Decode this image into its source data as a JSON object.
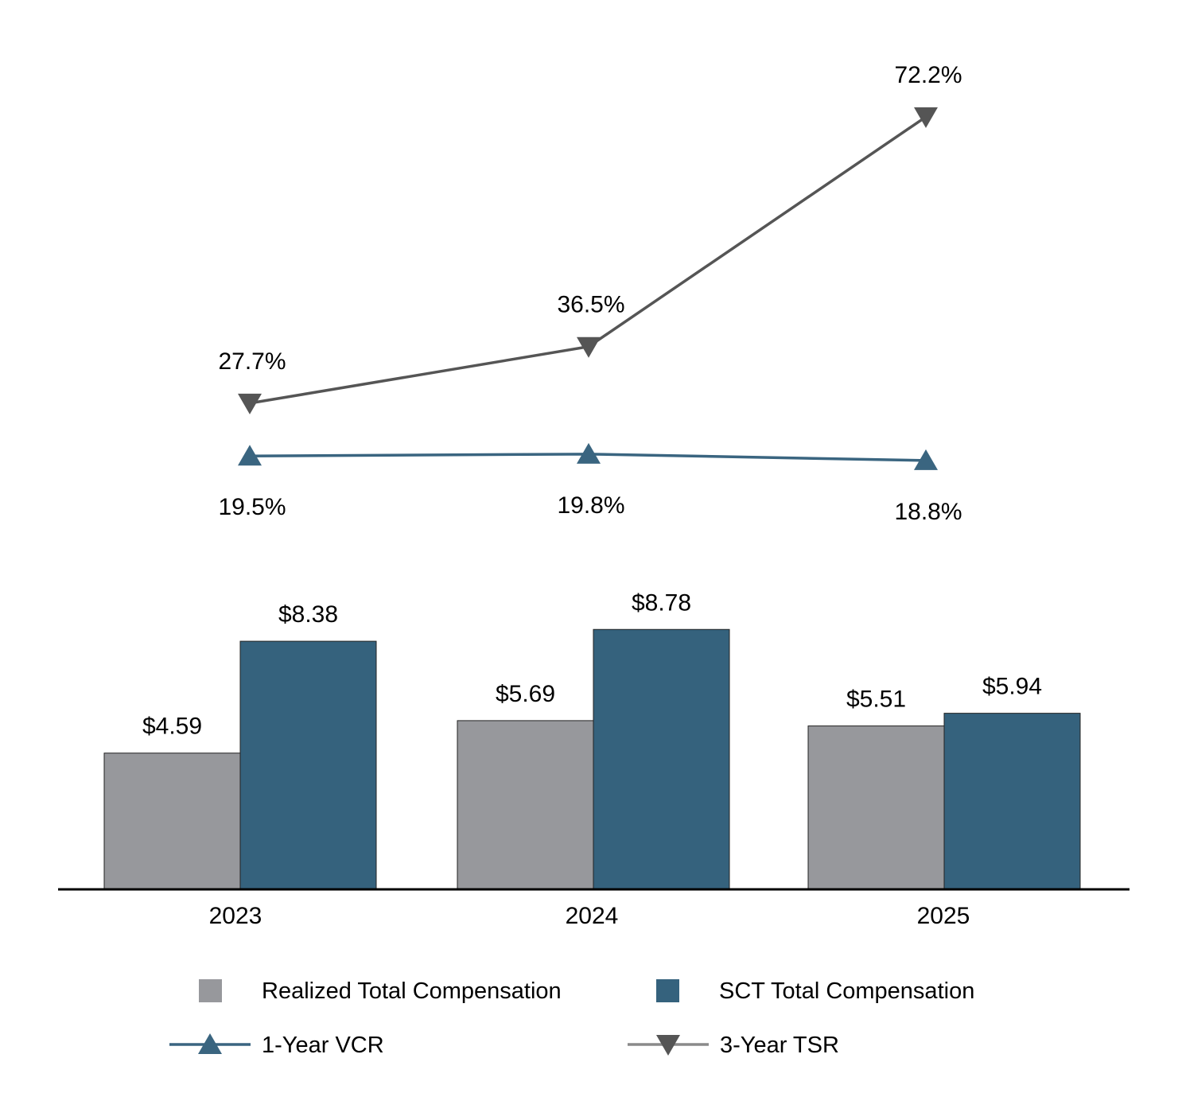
{
  "chart_data": {
    "type": "bar+line",
    "categories": [
      "2023",
      "2024",
      "2025"
    ],
    "bar_series": [
      {
        "name": "Realized Total Compensation",
        "values": [
          4.59,
          5.69,
          5.51
        ],
        "labels": [
          "$4.59",
          "$5.69",
          "$5.51"
        ],
        "color": "#97989c"
      },
      {
        "name": "SCT Total Compensation",
        "values": [
          8.38,
          8.78,
          5.94
        ],
        "labels": [
          "$8.38",
          "$8.78",
          "$5.94"
        ],
        "color": "#35627d"
      }
    ],
    "line_series": [
      {
        "name": "1-Year VCR",
        "values": [
          19.5,
          19.8,
          18.8
        ],
        "labels": [
          "19.5%",
          "19.8%",
          "18.8%"
        ],
        "color": "#3a6580",
        "marker": "triangle-up"
      },
      {
        "name": "3-Year TSR",
        "values": [
          27.7,
          36.5,
          72.2
        ],
        "labels": [
          "27.7%",
          "36.5%",
          "72.2%"
        ],
        "color": "#555555",
        "marker": "triangle-down"
      }
    ],
    "grid": false,
    "legend": "bottom"
  }
}
